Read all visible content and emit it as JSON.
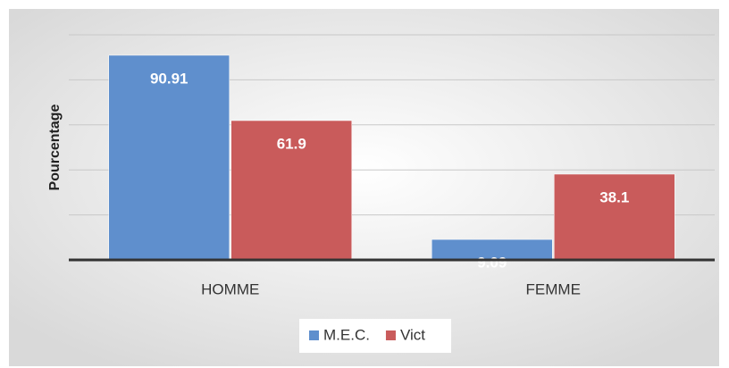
{
  "chart_data": {
    "type": "bar",
    "y_label": "Pourcentage",
    "categories": [
      "HOMME",
      "FEMME"
    ],
    "series": [
      {
        "name": "M.E.C.",
        "color": "#5f8fcd",
        "values": [
          90.91,
          9.09
        ]
      },
      {
        "name": "Vict",
        "color": "#c95b5b",
        "values": [
          61.9,
          38.1
        ]
      }
    ],
    "ylim": [
      0,
      100
    ],
    "yticks": [
      0,
      20,
      40,
      60,
      80,
      100
    ],
    "grid": true,
    "legend": "bottom"
  }
}
